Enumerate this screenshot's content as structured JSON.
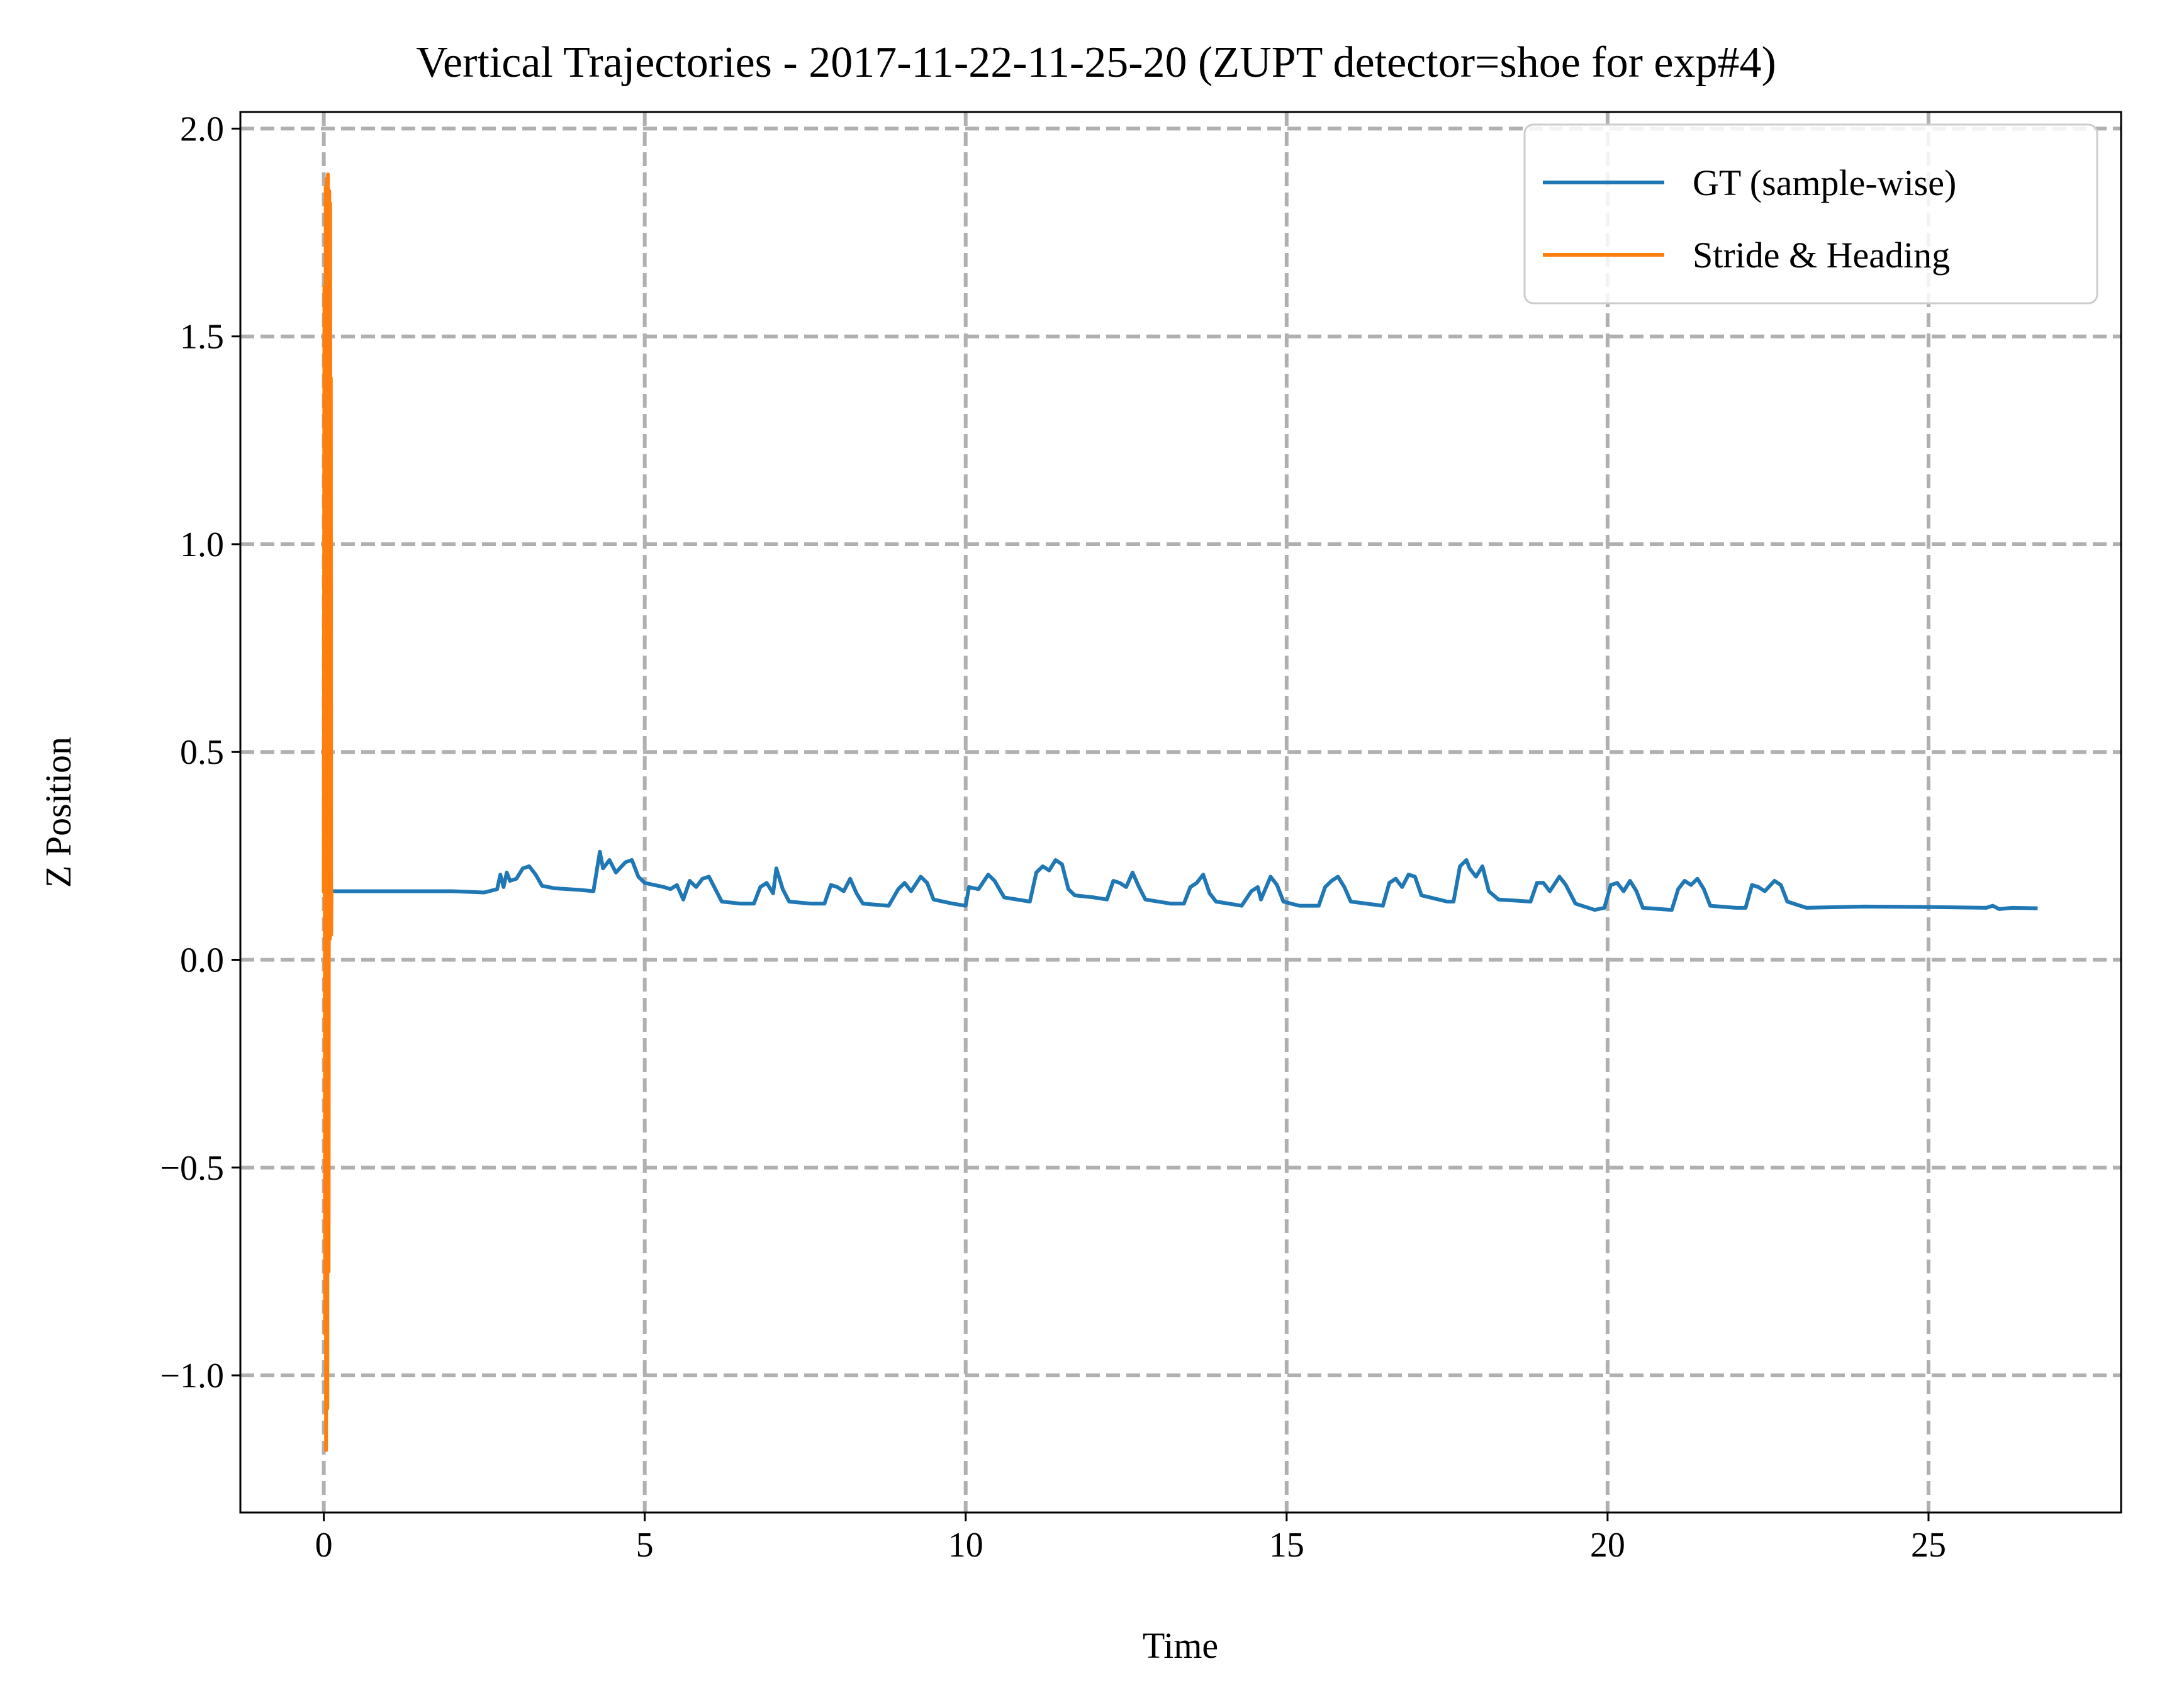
{
  "chart_data": {
    "type": "line",
    "title": "Vertical Trajectories - 2017-11-22-11-25-20 (ZUPT detector=shoe for exp#4)",
    "xlabel": "Time",
    "ylabel": "Z Position",
    "xlim": [
      -1.3,
      28
    ],
    "ylim": [
      -1.33,
      2.04
    ],
    "xticks": [
      0,
      5,
      10,
      15,
      20,
      25
    ],
    "yticks": [
      -1.0,
      -0.5,
      0.0,
      0.5,
      1.0,
      1.5,
      2.0
    ],
    "xtick_labels": [
      "0",
      "5",
      "10",
      "15",
      "20",
      "25"
    ],
    "ytick_labels": [
      "−1.0",
      "−0.5",
      "0.0",
      "0.5",
      "1.0",
      "1.5",
      "2.0"
    ],
    "grid": true,
    "grid_style": "dashed",
    "legend_position": "top-right",
    "colors": {
      "gt": "#1f77b4",
      "stride": "#ff7f0e",
      "grid": "#b0b0b0"
    },
    "series": [
      {
        "name": "GT (sample-wise)",
        "color": "#1f77b4",
        "points": [
          [
            0.0,
            0.165
          ],
          [
            1.0,
            0.165
          ],
          [
            2.0,
            0.165
          ],
          [
            2.5,
            0.162
          ],
          [
            2.7,
            0.17
          ],
          [
            2.75,
            0.205
          ],
          [
            2.8,
            0.175
          ],
          [
            2.85,
            0.21
          ],
          [
            2.9,
            0.19
          ],
          [
            3.0,
            0.195
          ],
          [
            3.1,
            0.22
          ],
          [
            3.2,
            0.225
          ],
          [
            3.3,
            0.205
          ],
          [
            3.4,
            0.178
          ],
          [
            3.6,
            0.172
          ],
          [
            4.0,
            0.168
          ],
          [
            4.2,
            0.165
          ],
          [
            4.3,
            0.26
          ],
          [
            4.35,
            0.22
          ],
          [
            4.45,
            0.24
          ],
          [
            4.55,
            0.21
          ],
          [
            4.7,
            0.235
          ],
          [
            4.8,
            0.24
          ],
          [
            4.9,
            0.2
          ],
          [
            5.0,
            0.185
          ],
          [
            5.3,
            0.175
          ],
          [
            5.4,
            0.17
          ],
          [
            5.5,
            0.18
          ],
          [
            5.6,
            0.145
          ],
          [
            5.7,
            0.19
          ],
          [
            5.8,
            0.175
          ],
          [
            5.9,
            0.195
          ],
          [
            6.0,
            0.2
          ],
          [
            6.1,
            0.17
          ],
          [
            6.2,
            0.14
          ],
          [
            6.5,
            0.135
          ],
          [
            6.7,
            0.135
          ],
          [
            6.8,
            0.175
          ],
          [
            6.9,
            0.185
          ],
          [
            7.0,
            0.16
          ],
          [
            7.05,
            0.22
          ],
          [
            7.15,
            0.17
          ],
          [
            7.25,
            0.14
          ],
          [
            7.6,
            0.135
          ],
          [
            7.8,
            0.135
          ],
          [
            7.9,
            0.18
          ],
          [
            8.0,
            0.175
          ],
          [
            8.1,
            0.165
          ],
          [
            8.2,
            0.195
          ],
          [
            8.3,
            0.16
          ],
          [
            8.4,
            0.135
          ],
          [
            8.8,
            0.13
          ],
          [
            8.95,
            0.17
          ],
          [
            9.05,
            0.185
          ],
          [
            9.15,
            0.165
          ],
          [
            9.3,
            0.2
          ],
          [
            9.4,
            0.185
          ],
          [
            9.5,
            0.145
          ],
          [
            9.8,
            0.135
          ],
          [
            10.0,
            0.13
          ],
          [
            10.05,
            0.175
          ],
          [
            10.2,
            0.17
          ],
          [
            10.35,
            0.205
          ],
          [
            10.45,
            0.19
          ],
          [
            10.6,
            0.15
          ],
          [
            11.0,
            0.14
          ],
          [
            11.05,
            0.175
          ],
          [
            11.1,
            0.21
          ],
          [
            11.2,
            0.225
          ],
          [
            11.3,
            0.215
          ],
          [
            11.4,
            0.24
          ],
          [
            11.5,
            0.23
          ],
          [
            11.6,
            0.17
          ],
          [
            11.7,
            0.155
          ],
          [
            12.0,
            0.15
          ],
          [
            12.2,
            0.145
          ],
          [
            12.3,
            0.19
          ],
          [
            12.4,
            0.185
          ],
          [
            12.5,
            0.175
          ],
          [
            12.6,
            0.21
          ],
          [
            12.7,
            0.175
          ],
          [
            12.8,
            0.145
          ],
          [
            13.2,
            0.135
          ],
          [
            13.4,
            0.135
          ],
          [
            13.5,
            0.175
          ],
          [
            13.6,
            0.185
          ],
          [
            13.7,
            0.205
          ],
          [
            13.8,
            0.16
          ],
          [
            13.9,
            0.14
          ],
          [
            14.3,
            0.13
          ],
          [
            14.45,
            0.165
          ],
          [
            14.55,
            0.175
          ],
          [
            14.6,
            0.145
          ],
          [
            14.75,
            0.2
          ],
          [
            14.85,
            0.18
          ],
          [
            14.95,
            0.14
          ],
          [
            15.2,
            0.13
          ],
          [
            15.5,
            0.13
          ],
          [
            15.6,
            0.175
          ],
          [
            15.7,
            0.19
          ],
          [
            15.8,
            0.2
          ],
          [
            15.9,
            0.175
          ],
          [
            16.0,
            0.14
          ],
          [
            16.5,
            0.13
          ],
          [
            16.6,
            0.185
          ],
          [
            16.7,
            0.195
          ],
          [
            16.8,
            0.175
          ],
          [
            16.9,
            0.205
          ],
          [
            17.0,
            0.2
          ],
          [
            17.1,
            0.155
          ],
          [
            17.5,
            0.14
          ],
          [
            17.6,
            0.14
          ],
          [
            17.7,
            0.225
          ],
          [
            17.8,
            0.24
          ],
          [
            17.85,
            0.22
          ],
          [
            17.95,
            0.2
          ],
          [
            18.05,
            0.225
          ],
          [
            18.15,
            0.165
          ],
          [
            18.3,
            0.145
          ],
          [
            18.8,
            0.14
          ],
          [
            18.9,
            0.185
          ],
          [
            19.0,
            0.185
          ],
          [
            19.1,
            0.165
          ],
          [
            19.25,
            0.2
          ],
          [
            19.35,
            0.18
          ],
          [
            19.5,
            0.135
          ],
          [
            19.8,
            0.12
          ],
          [
            19.95,
            0.125
          ],
          [
            20.05,
            0.18
          ],
          [
            20.15,
            0.185
          ],
          [
            20.25,
            0.165
          ],
          [
            20.35,
            0.19
          ],
          [
            20.45,
            0.165
          ],
          [
            20.55,
            0.125
          ],
          [
            21.0,
            0.12
          ],
          [
            21.1,
            0.17
          ],
          [
            21.2,
            0.19
          ],
          [
            21.3,
            0.18
          ],
          [
            21.4,
            0.195
          ],
          [
            21.5,
            0.17
          ],
          [
            21.6,
            0.13
          ],
          [
            22.0,
            0.125
          ],
          [
            22.15,
            0.125
          ],
          [
            22.25,
            0.18
          ],
          [
            22.35,
            0.175
          ],
          [
            22.45,
            0.165
          ],
          [
            22.6,
            0.19
          ],
          [
            22.7,
            0.18
          ],
          [
            22.8,
            0.14
          ],
          [
            23.0,
            0.13
          ],
          [
            23.1,
            0.125
          ],
          [
            24.0,
            0.128
          ],
          [
            25.0,
            0.127
          ],
          [
            25.9,
            0.125
          ],
          [
            26.0,
            0.13
          ],
          [
            26.1,
            0.122
          ],
          [
            26.3,
            0.125
          ],
          [
            26.7,
            0.124
          ]
        ]
      },
      {
        "name": "Stride & Heading",
        "color": "#ff7f0e",
        "points": [
          [
            0.0,
            0.16
          ],
          [
            0.01,
            1.62
          ],
          [
            0.02,
            -0.9
          ],
          [
            0.03,
            1.86
          ],
          [
            0.035,
            -1.18
          ],
          [
            0.045,
            1.88
          ],
          [
            0.055,
            -1.08
          ],
          [
            0.065,
            1.89
          ],
          [
            0.075,
            -0.75
          ],
          [
            0.085,
            1.85
          ],
          [
            0.095,
            0.05
          ],
          [
            0.1,
            1.82
          ],
          [
            0.105,
            0.1
          ],
          [
            0.11,
            1.4
          ],
          [
            0.115,
            0.06
          ],
          [
            0.12,
            0.165
          ]
        ]
      }
    ]
  }
}
